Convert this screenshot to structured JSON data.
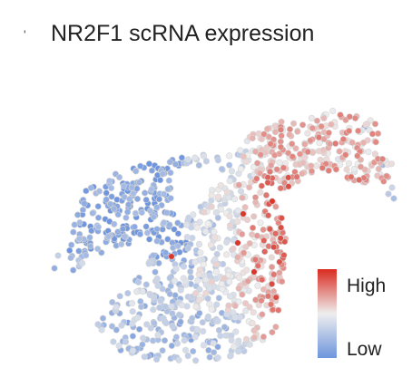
{
  "chart_data": {
    "type": "scatter",
    "title": "NR2F1 scRNA expression",
    "marker": "'",
    "xlabel": "",
    "ylabel": "",
    "grid": false,
    "axes_visible": false,
    "colorbar": {
      "high_label": "High",
      "low_label": "Low",
      "high_color": "#d92a1f",
      "mid_color": "#eeeeee",
      "low_color": "#6e95dd",
      "placement": "right"
    },
    "expression_range": [
      0,
      1
    ],
    "point_color_scale": "expression (0 = Low, 1 = High)",
    "cell_outline_color": "#d6d6d6"
  }
}
